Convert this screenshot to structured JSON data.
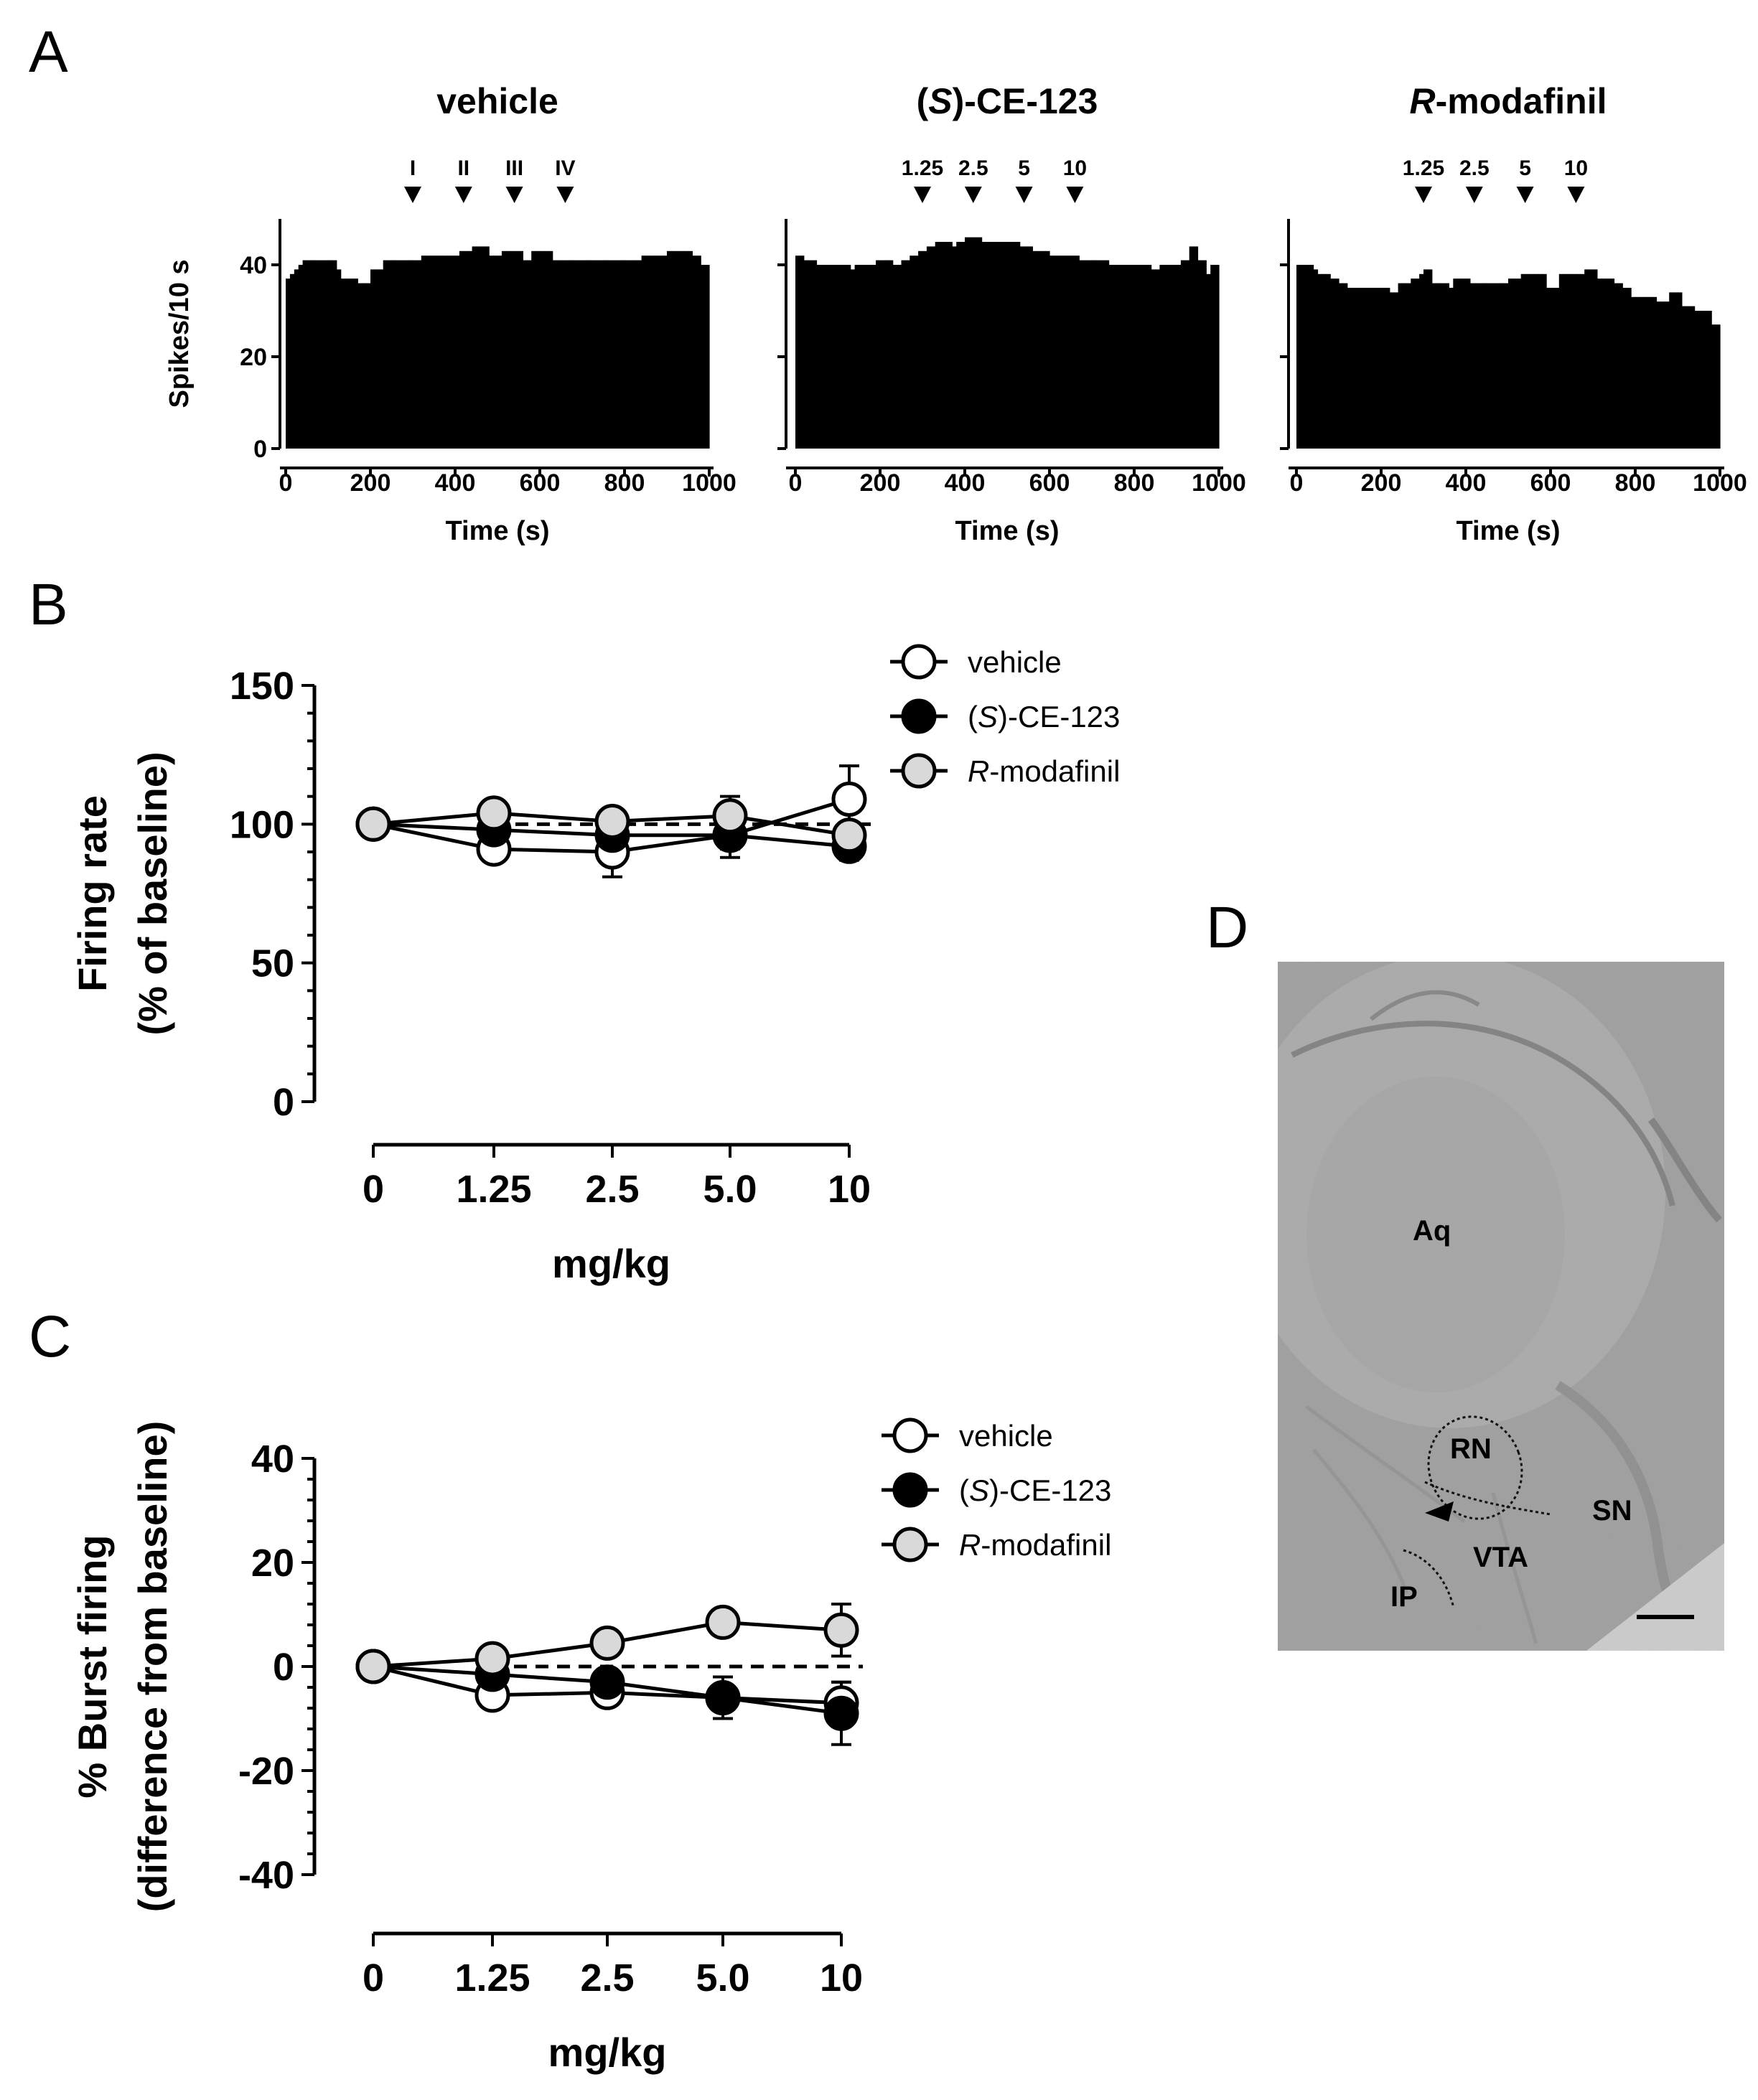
{
  "panels": {
    "A": "A",
    "B": "B",
    "C": "C",
    "D": "D"
  },
  "chart_data": [
    {
      "type": "bar",
      "panel": "A",
      "title": "vehicle",
      "title_prefix": "",
      "title_italic_part": "",
      "title_rest": "vehicle",
      "xlabel": "Time (s)",
      "ylabel": "Spikes/10 s",
      "xlim": [
        0,
        1000
      ],
      "ylim": [
        0,
        50
      ],
      "xticks": [
        0,
        200,
        400,
        600,
        800,
        1000
      ],
      "yticks": [
        0,
        20,
        40
      ],
      "markers": [
        {
          "label": "I",
          "x": 300
        },
        {
          "label": "II",
          "x": 420
        },
        {
          "label": "III",
          "x": 540
        },
        {
          "label": "IV",
          "x": 660
        }
      ],
      "bin_width_s": 10,
      "values": [
        37,
        38,
        39,
        40,
        41,
        41,
        41,
        41,
        41,
        41,
        41,
        41,
        39,
        37,
        37,
        37,
        37,
        36,
        36,
        36,
        39,
        39,
        39,
        41,
        41,
        41,
        41,
        41,
        41,
        41,
        41,
        41,
        42,
        42,
        42,
        42,
        42,
        42,
        42,
        42,
        42,
        43,
        43,
        43,
        44,
        44,
        44,
        44,
        42,
        42,
        42,
        43,
        43,
        43,
        43,
        43,
        41,
        41,
        43,
        43,
        43,
        43,
        43,
        41,
        41,
        41,
        41,
        41,
        41,
        41,
        41,
        41,
        41,
        41,
        41,
        41,
        41,
        41,
        41,
        41,
        41,
        41,
        41,
        41,
        42,
        42,
        42,
        42,
        42,
        42,
        43,
        43,
        43,
        43,
        43,
        43,
        42,
        42,
        40,
        40
      ]
    },
    {
      "type": "bar",
      "panel": "A",
      "title": "(S)-CE-123",
      "title_prefix": "(",
      "title_italic_part": "S",
      "title_rest": ")-CE-123",
      "xlabel": "Time (s)",
      "ylabel": "",
      "xlim": [
        0,
        1000
      ],
      "ylim": [
        0,
        50
      ],
      "xticks": [
        0,
        200,
        400,
        600,
        800,
        1000
      ],
      "yticks": [
        0,
        20,
        40
      ],
      "markers": [
        {
          "label": "1.25",
          "x": 300
        },
        {
          "label": "2.5",
          "x": 420
        },
        {
          "label": "5",
          "x": 540
        },
        {
          "label": "10",
          "x": 660
        }
      ],
      "bin_width_s": 10,
      "values": [
        42,
        42,
        41,
        41,
        41,
        40,
        40,
        40,
        40,
        40,
        40,
        40,
        40,
        39,
        40,
        40,
        40,
        40,
        40,
        41,
        41,
        41,
        41,
        40,
        40,
        41,
        41,
        42,
        42,
        43,
        43,
        44,
        44,
        45,
        45,
        45,
        45,
        44,
        45,
        45,
        46,
        46,
        46,
        46,
        45,
        45,
        45,
        45,
        45,
        45,
        45,
        45,
        45,
        44,
        44,
        44,
        43,
        43,
        43,
        43,
        42,
        42,
        42,
        42,
        42,
        42,
        42,
        41,
        41,
        41,
        41,
        41,
        41,
        41,
        40,
        40,
        40,
        40,
        40,
        40,
        40,
        40,
        40,
        40,
        39,
        39,
        40,
        40,
        40,
        40,
        40,
        41,
        41,
        44,
        44,
        41,
        41,
        38,
        40,
        40
      ]
    },
    {
      "type": "bar",
      "panel": "A",
      "title": "R-modafinil",
      "title_prefix": "",
      "title_italic_part": "R",
      "title_rest": "-modafinil",
      "xlabel": "Time (s)",
      "ylabel": "",
      "xlim": [
        0,
        1000
      ],
      "ylim": [
        0,
        50
      ],
      "xticks": [
        0,
        200,
        400,
        600,
        800,
        1000
      ],
      "yticks": [
        0,
        20,
        40
      ],
      "markers": [
        {
          "label": "1.25",
          "x": 300
        },
        {
          "label": "2.5",
          "x": 420
        },
        {
          "label": "5",
          "x": 540
        },
        {
          "label": "10",
          "x": 660
        }
      ],
      "bin_width_s": 10,
      "values": [
        40,
        40,
        40,
        40,
        39,
        38,
        38,
        38,
        37,
        37,
        36,
        36,
        35,
        35,
        35,
        35,
        35,
        35,
        35,
        35,
        35,
        35,
        34,
        34,
        36,
        36,
        36,
        37,
        37,
        38,
        39,
        39,
        36,
        36,
        36,
        36,
        35,
        37,
        37,
        37,
        37,
        36,
        36,
        36,
        36,
        36,
        36,
        36,
        36,
        36,
        37,
        37,
        37,
        38,
        38,
        38,
        38,
        38,
        38,
        35,
        35,
        35,
        38,
        38,
        38,
        38,
        38,
        38,
        39,
        39,
        39,
        37,
        37,
        37,
        37,
        36,
        36,
        35,
        35,
        33,
        33,
        33,
        33,
        33,
        33,
        32,
        32,
        32,
        34,
        34,
        34,
        31,
        31,
        31,
        30,
        30,
        30,
        30,
        27,
        27
      ]
    },
    {
      "type": "line",
      "panel": "B",
      "xlabel": "mg/kg",
      "ylabel": "Firing rate",
      "ylabel_line2": "(% of baseline)",
      "categories": [
        "0",
        "1.25",
        "2.5",
        "5.0",
        "10"
      ],
      "ylim": [
        0,
        150
      ],
      "yticks": [
        0,
        50,
        100,
        150
      ],
      "reference_line": 100,
      "legend_position": "top-right",
      "series": [
        {
          "name": "vehicle",
          "name_prefix": "",
          "name_italic": "",
          "name_rest": "vehicle",
          "fill": "#ffffff",
          "values": [
            100,
            91,
            90,
            96,
            109
          ],
          "err": [
            0,
            3,
            9,
            5,
            12
          ]
        },
        {
          "name": "(S)-CE-123",
          "name_prefix": "(",
          "name_italic": "S",
          "name_rest": ")-CE-123",
          "fill": "#000000",
          "values": [
            100,
            98,
            96,
            96,
            92
          ],
          "err": [
            0,
            3,
            4,
            8,
            5
          ]
        },
        {
          "name": "R-modafinil",
          "name_prefix": "",
          "name_italic": "R",
          "name_rest": "-modafinil",
          "fill": "#d9d9d9",
          "values": [
            100,
            104,
            101,
            103,
            96
          ],
          "err": [
            0,
            3,
            3,
            7,
            4
          ]
        }
      ]
    },
    {
      "type": "line",
      "panel": "C",
      "xlabel": "mg/kg",
      "ylabel": "% Burst firing",
      "ylabel_line2": "(difference from baseline)",
      "categories": [
        "0",
        "1.25",
        "2.5",
        "5.0",
        "10"
      ],
      "ylim": [
        -40,
        40
      ],
      "yticks": [
        -40,
        -20,
        0,
        20,
        40
      ],
      "reference_line": 0,
      "legend_position": "top-right",
      "series": [
        {
          "name": "vehicle",
          "name_prefix": "",
          "name_italic": "",
          "name_rest": "vehicle",
          "fill": "#ffffff",
          "values": [
            0,
            -5.5,
            -5,
            -6,
            -7
          ],
          "err": [
            0,
            1.5,
            1.5,
            2,
            4
          ]
        },
        {
          "name": "(S)-CE-123",
          "name_prefix": "(",
          "name_italic": "S",
          "name_rest": ")-CE-123",
          "fill": "#000000",
          "values": [
            0,
            -1.5,
            -3,
            -6,
            -9
          ],
          "err": [
            0,
            1.5,
            2,
            4,
            6
          ]
        },
        {
          "name": "R-modafinil",
          "name_prefix": "",
          "name_italic": "R",
          "name_rest": "-modafinil",
          "fill": "#d9d9d9",
          "values": [
            0,
            1.5,
            4.5,
            8.5,
            7
          ],
          "err": [
            0,
            1.5,
            1.5,
            2,
            5
          ]
        }
      ]
    }
  ],
  "histology": {
    "labels": [
      "Aq",
      "RN",
      "SN",
      "VTA",
      "IP"
    ]
  }
}
